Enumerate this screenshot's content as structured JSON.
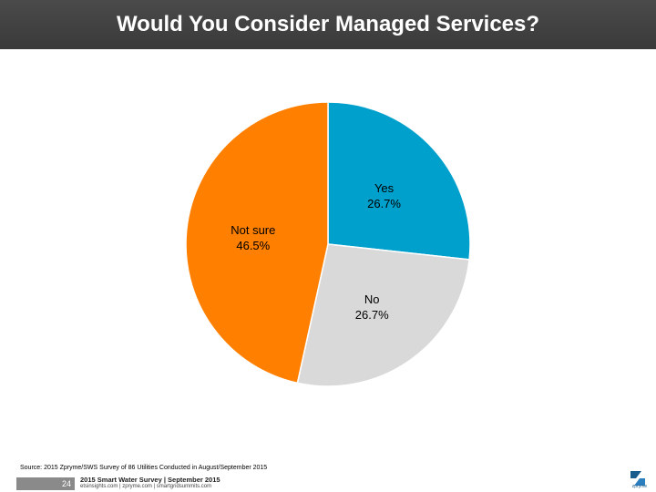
{
  "header": {
    "title": "Would You Consider Managed Services?"
  },
  "chart_data": {
    "type": "pie",
    "categories": [
      "Yes",
      "No",
      "Not sure"
    ],
    "values": [
      26.7,
      26.7,
      46.5
    ],
    "value_labels": [
      "26.7%",
      "26.7%",
      "46.5%"
    ],
    "colors": [
      "#00a0cc",
      "#d9d9d9",
      "#ff7f00"
    ],
    "start_angle": "top (12 o'clock), clockwise",
    "legend": "none (labels inside slices)"
  },
  "footer": {
    "source": "Source: 2015 Zpryme/SWS Survey of 86 Utilities Conducted in August/September 2015",
    "page_number": "24",
    "survey_title": "2015 Smart Water Survey | September 2015",
    "sites": "etsinsights.com | zpryme.com | smartgridsummits.com",
    "logo_text": "zpryme"
  }
}
